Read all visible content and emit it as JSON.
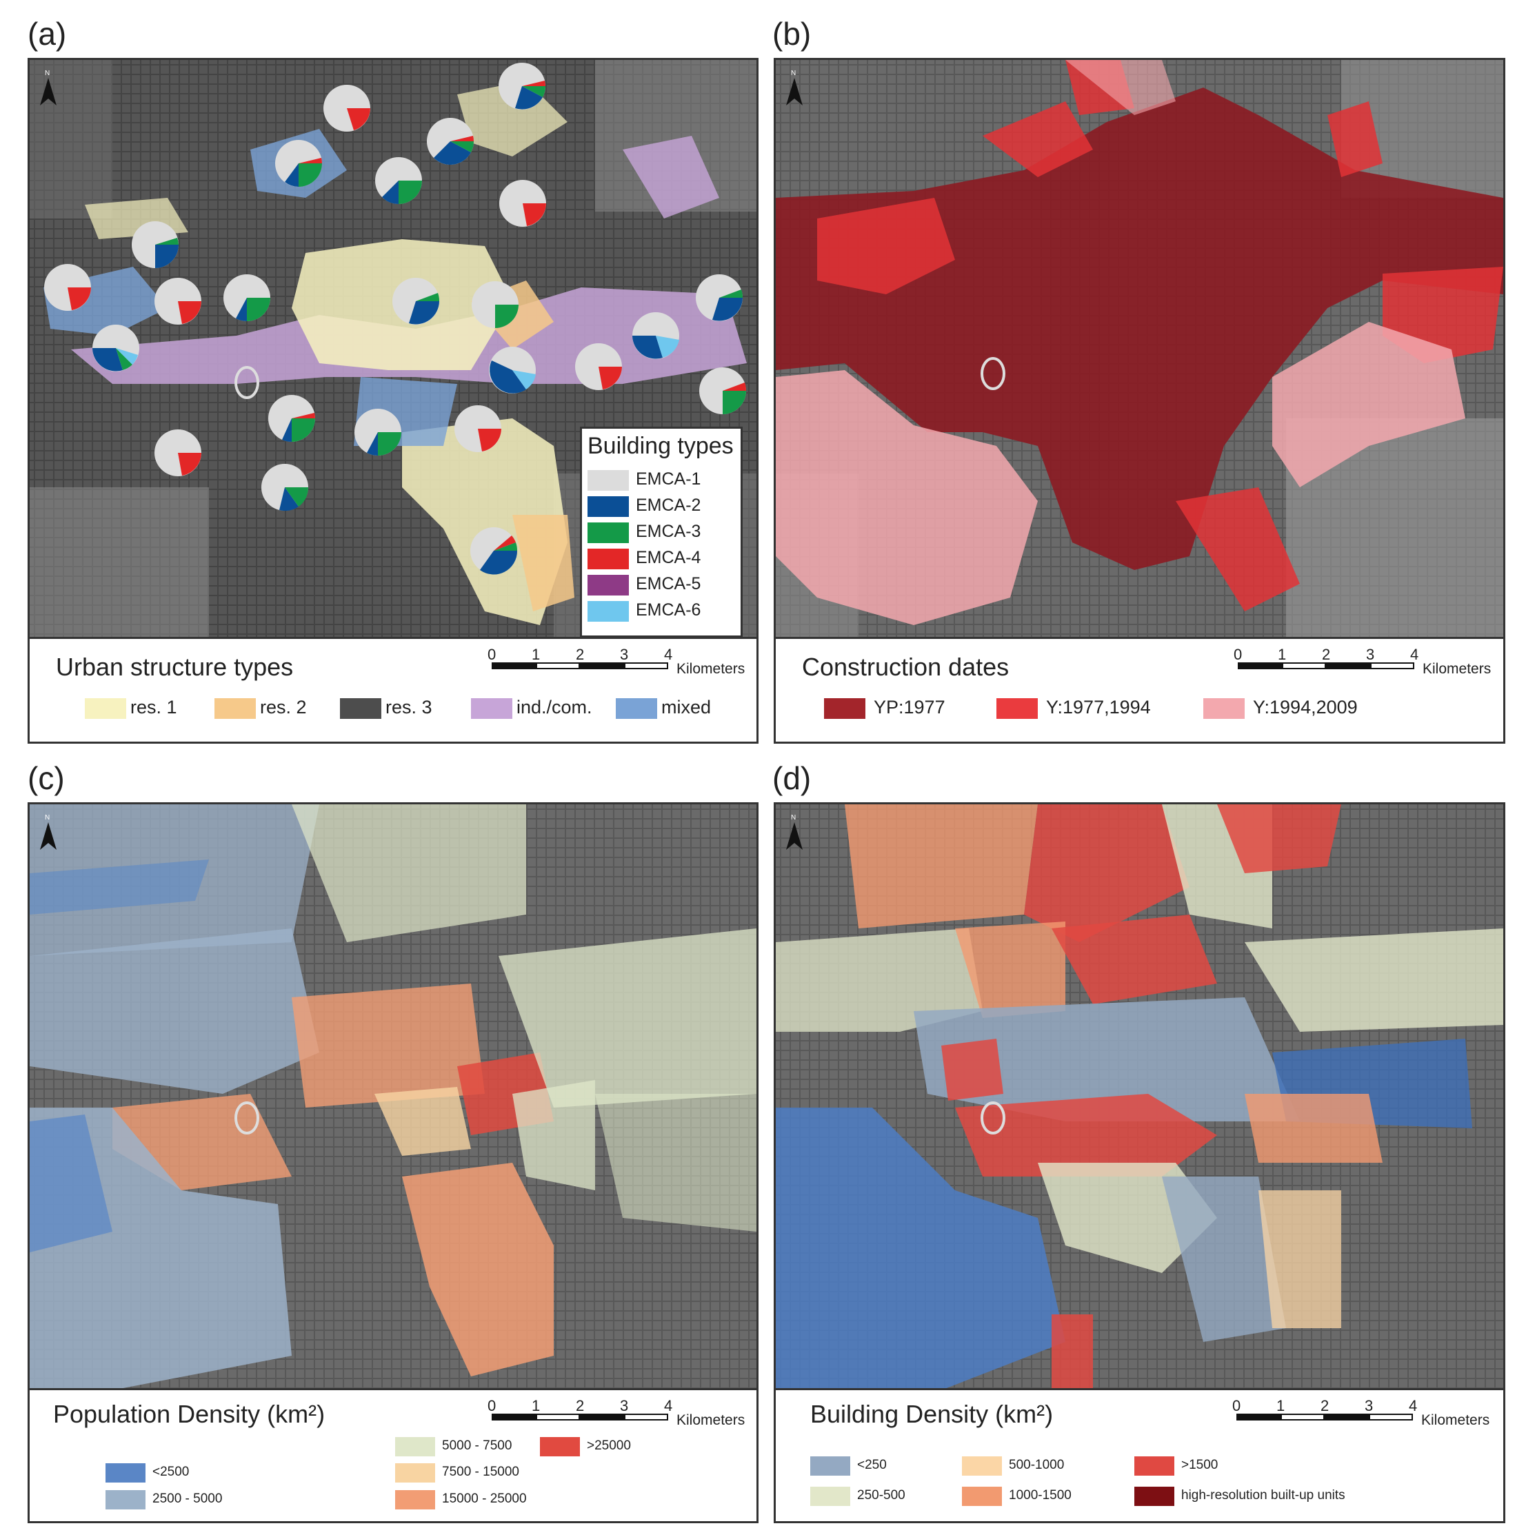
{
  "panels": {
    "a": {
      "label": "(a)",
      "legend_title": "Urban structure types",
      "legend_items": [
        {
          "label": "res. 1",
          "color": "#f7f2bf"
        },
        {
          "label": "res. 2",
          "color": "#f6c98a"
        },
        {
          "label": "res. 3",
          "color": "#4d4d4d"
        },
        {
          "label": "ind./com.",
          "color": "#c7a5d8"
        },
        {
          "label": "mixed",
          "color": "#7aa3d6"
        }
      ],
      "building_types": {
        "title": "Building types",
        "items": [
          {
            "label": "EMCA-1",
            "color": "#dcdcdc"
          },
          {
            "label": "EMCA-2",
            "color": "#0b4f96"
          },
          {
            "label": "EMCA-3",
            "color": "#149a48"
          },
          {
            "label": "EMCA-4",
            "color": "#e32727"
          },
          {
            "label": "EMCA-5",
            "color": "#8e3a86"
          },
          {
            "label": "EMCA-6",
            "color": "#6fc7ee"
          }
        ]
      }
    },
    "b": {
      "label": "(b)",
      "legend_title": "Construction dates",
      "legend_items": [
        {
          "label": "YP:1977",
          "color": "#a3252b"
        },
        {
          "label": "Y:1977,1994",
          "color": "#ea3b3e"
        },
        {
          "label": "Y:1994,2009",
          "color": "#f3a8ae"
        }
      ]
    },
    "c": {
      "label": "(c)",
      "legend_title": "Population Density (km²)",
      "legend_items": [
        {
          "label": "<2500",
          "color": "#5a86c6"
        },
        {
          "label": "2500 - 5000",
          "color": "#9cb2c9"
        },
        {
          "label": "5000 - 7500",
          "color": "#dfe7c9"
        },
        {
          "label": "7500 - 15000",
          "color": "#f8d4a2"
        },
        {
          "label": "15000 - 25000",
          "color": "#f29d74"
        },
        {
          "label": ">25000",
          "color": "#e14a40"
        }
      ]
    },
    "d": {
      "label": "(d)",
      "legend_title": "Building Density (km²)",
      "legend_items": [
        {
          "label": "<250",
          "color": "#94a9c2"
        },
        {
          "label": "250-500",
          "color": "#e2e7c9"
        },
        {
          "label": "500-1000",
          "color": "#fbd6a6"
        },
        {
          "label": "1000-1500",
          "color": "#f29a70"
        },
        {
          "label": ">1500",
          "color": "#e04942"
        },
        {
          "label": "high-resolution built-up units",
          "color": "#7d0f13"
        }
      ]
    }
  },
  "scale": {
    "ticks": [
      "0",
      "1",
      "2",
      "3",
      "4"
    ],
    "unit": "Kilometers"
  },
  "north_symbol": "N"
}
